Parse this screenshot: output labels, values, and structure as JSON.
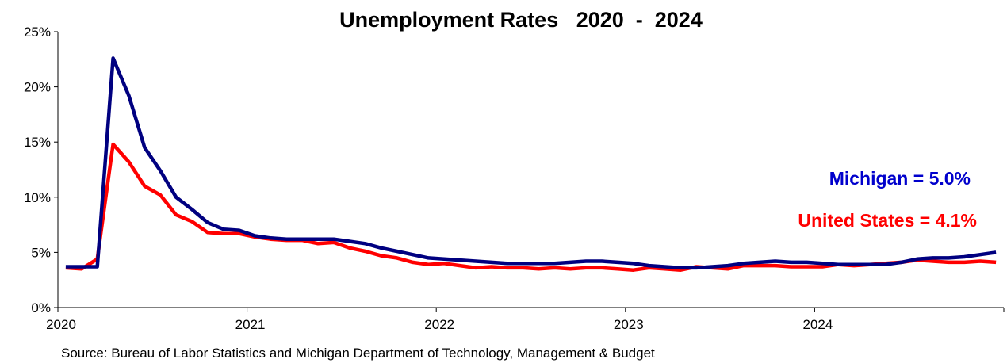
{
  "chart_data": {
    "type": "line",
    "title": "Unemployment Rates   2020  -  2024",
    "source": "Source: Bureau of Labor Statistics and Michigan Department of Technology, Management & Budget",
    "ylim": [
      0,
      25
    ],
    "xlim": [
      2020,
      2025
    ],
    "y_ticks": [
      "0%",
      "5%",
      "10%",
      "15%",
      "20%",
      "25%"
    ],
    "x_ticks": [
      "2020",
      "2021",
      "2022",
      "2023",
      "2024"
    ],
    "grid": false,
    "annotations": [
      {
        "text": "Michigan = 5.0%",
        "color": "#0000cc"
      },
      {
        "text": "United States = 4.1%",
        "color": "#ff0000"
      }
    ],
    "series": [
      {
        "key": "mi",
        "color": "#000080",
        "values": [
          3.7,
          3.7,
          3.7,
          22.6,
          19.2,
          14.5,
          12.4,
          10.0,
          8.9,
          7.7,
          7.1,
          7.0,
          6.5,
          6.3,
          6.2,
          6.2,
          6.2,
          6.2,
          6.0,
          5.8,
          5.4,
          5.1,
          4.8,
          4.5,
          4.4,
          4.3,
          4.2,
          4.1,
          4.0,
          4.0,
          4.0,
          4.0,
          4.1,
          4.2,
          4.2,
          4.1,
          4.0,
          3.8,
          3.7,
          3.6,
          3.6,
          3.7,
          3.8,
          4.0,
          4.1,
          4.2,
          4.1,
          4.1,
          4.0,
          3.9,
          3.9,
          3.9,
          3.9,
          4.1,
          4.4,
          4.5,
          4.5,
          4.6,
          4.8,
          5.0
        ]
      },
      {
        "key": "us",
        "color": "#ff0000",
        "values": [
          3.6,
          3.5,
          4.4,
          14.8,
          13.2,
          11.0,
          10.2,
          8.4,
          7.8,
          6.8,
          6.7,
          6.7,
          6.4,
          6.2,
          6.1,
          6.1,
          5.8,
          5.9,
          5.4,
          5.1,
          4.7,
          4.5,
          4.1,
          3.9,
          4.0,
          3.8,
          3.6,
          3.7,
          3.6,
          3.6,
          3.5,
          3.6,
          3.5,
          3.6,
          3.6,
          3.5,
          3.4,
          3.6,
          3.5,
          3.4,
          3.7,
          3.6,
          3.5,
          3.8,
          3.8,
          3.8,
          3.7,
          3.7,
          3.7,
          3.9,
          3.8,
          3.9,
          4.0,
          4.1,
          4.3,
          4.2,
          4.1,
          4.1,
          4.2,
          4.1
        ]
      }
    ]
  }
}
